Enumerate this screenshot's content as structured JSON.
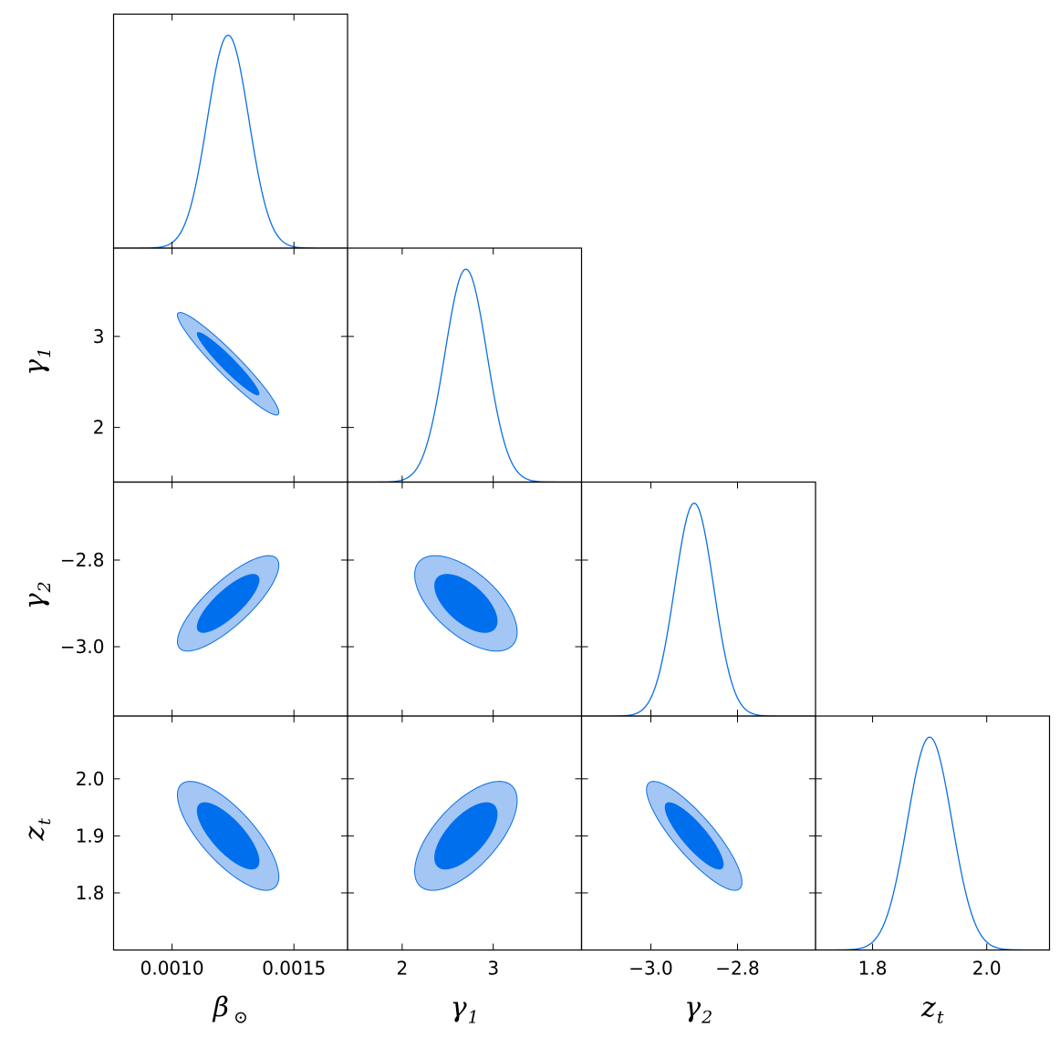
{
  "colors": {
    "contour_outer": "#a3c6f4",
    "contour_inner": "#006fed",
    "line": "#0a6fe4",
    "frame": "#000000",
    "background": "#ffffff"
  },
  "chart_data": {
    "type": "triangle-plot",
    "parameters": [
      {
        "id": "beta_sun",
        "symbol": "β",
        "subscript": "⊙",
        "range": [
          0.00076,
          0.00172
        ],
        "mean": 0.00123,
        "sigma": 8.5e-05
      },
      {
        "id": "gamma_1",
        "symbol": "γ",
        "subscript": "1",
        "range": [
          1.4,
          3.97
        ],
        "mean": 2.7,
        "sigma": 0.23
      },
      {
        "id": "gamma_2",
        "symbol": "γ",
        "subscript": "2",
        "range": [
          -3.16,
          -2.62
        ],
        "mean": -2.9,
        "sigma": 0.045
      },
      {
        "id": "z_t",
        "symbol": "z",
        "subscript": "t",
        "range": [
          1.7,
          2.11
        ],
        "mean": 1.9,
        "sigma": 0.039
      }
    ],
    "correlations": [
      {
        "pair": [
          "beta_sun",
          "gamma_1"
        ],
        "rho": -0.95
      },
      {
        "pair": [
          "beta_sun",
          "gamma_2"
        ],
        "rho": 0.8
      },
      {
        "pair": [
          "gamma_1",
          "gamma_2"
        ],
        "rho": -0.6
      },
      {
        "pair": [
          "beta_sun",
          "z_t"
        ],
        "rho": -0.75
      },
      {
        "pair": [
          "gamma_1",
          "z_t"
        ],
        "rho": 0.65
      },
      {
        "pair": [
          "gamma_2",
          "z_t"
        ],
        "rho": -0.85
      }
    ],
    "x_ticks": [
      {
        "values": [
          0.001,
          0.0015
        ],
        "labels": [
          "0.0010",
          "0.0015"
        ]
      },
      {
        "values": [
          2,
          3
        ],
        "labels": [
          "2",
          "3"
        ]
      },
      {
        "values": [
          -3.0,
          -2.8
        ],
        "labels": [
          "−3.0",
          "−2.8"
        ]
      },
      {
        "values": [
          1.8,
          2.0
        ],
        "labels": [
          "1.8",
          "2.0"
        ]
      }
    ],
    "y_ticks": [
      null,
      {
        "values": [
          2,
          3
        ],
        "labels": [
          "2",
          "3"
        ]
      },
      {
        "values": [
          -3.0,
          -2.8
        ],
        "labels": [
          "−3.0",
          "−2.8"
        ]
      },
      {
        "values": [
          1.8,
          1.9,
          2.0
        ],
        "labels": [
          "1.8",
          "1.9",
          "2.0"
        ]
      }
    ],
    "contour_levels": [
      "68%",
      "95%"
    ],
    "grid": false,
    "legend": "none"
  }
}
